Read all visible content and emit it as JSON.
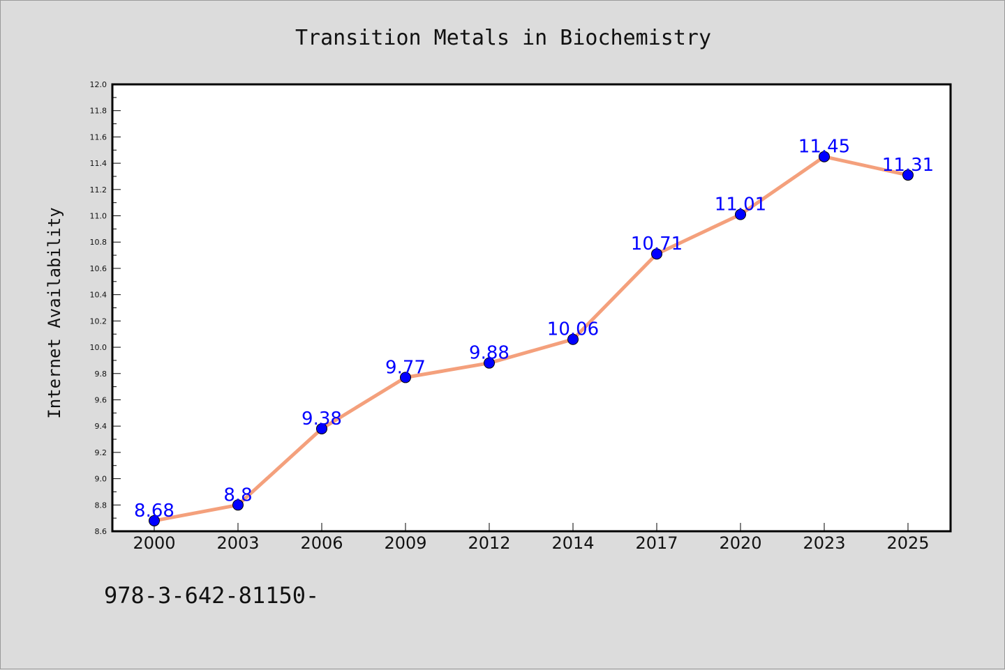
{
  "chart_data": {
    "type": "line",
    "title": "Transition Metals in Biochemistry",
    "xlabel": "",
    "ylabel": "Internet Availability",
    "categories": [
      "2000",
      "2003",
      "2006",
      "2009",
      "2012",
      "2014",
      "2017",
      "2020",
      "2023",
      "2025"
    ],
    "values": [
      8.68,
      8.8,
      9.38,
      9.77,
      9.88,
      10.06,
      10.71,
      11.01,
      11.45,
      11.31
    ],
    "data_labels": [
      "8.68",
      "8.8",
      "9.38",
      "9.77",
      "9.88",
      "10.06",
      "10.71",
      "11.01",
      "11.45",
      "11.31"
    ],
    "ylim": [
      8.6,
      12.0
    ],
    "yticks": [
      "8.6",
      "8.8",
      "9.0",
      "9.2",
      "9.4",
      "9.6",
      "9.8",
      "10.0",
      "10.2",
      "10.4",
      "10.6",
      "10.8",
      "11.0",
      "11.2",
      "11.4",
      "11.6",
      "11.8",
      "12.0"
    ],
    "grid": false,
    "legend": "none",
    "line_color": "#f4a07c",
    "marker_color": "#0000ff",
    "label_color": "#0000ff"
  },
  "footer": {
    "text": "978-3-642-81150-"
  }
}
